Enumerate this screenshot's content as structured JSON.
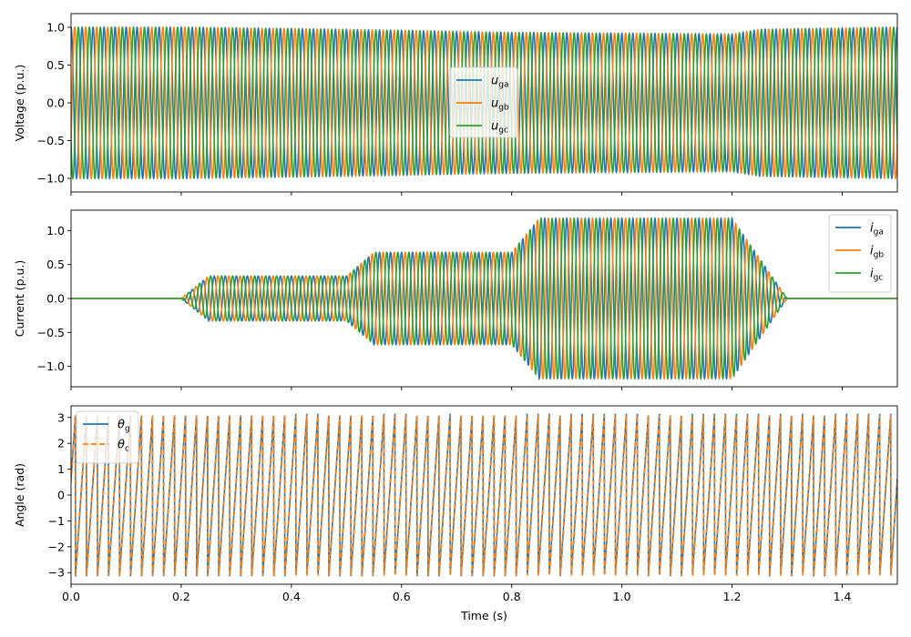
{
  "colors": {
    "blue": "#1f77b4",
    "orange": "#ff7f0e",
    "green": "#2ca02c"
  },
  "chart_data": [
    {
      "type": "line",
      "ylabel": "Voltage (p.u.)",
      "xlabel": "",
      "xlim": [
        0,
        1.5
      ],
      "ylim": [
        -1.18,
        1.18
      ],
      "x_ticks": [
        0.0,
        0.2,
        0.4,
        0.6,
        0.8,
        1.0,
        1.2,
        1.4
      ],
      "y_ticks": [
        -1.0,
        -0.5,
        0.0,
        0.5,
        1.0
      ],
      "y_tick_labels": [
        "−1.0",
        "−0.5",
        "0.0",
        "0.5",
        "1.0"
      ],
      "grid": false,
      "legend_position": "center",
      "frequency_hz": 50,
      "series": [
        {
          "name": "u",
          "sub": "ga",
          "color": "#1f77b4",
          "phase_deg": 0
        },
        {
          "name": "u",
          "sub": "gb",
          "color": "#ff7f0e",
          "phase_deg": -120
        },
        {
          "name": "u",
          "sub": "gc",
          "color": "#2ca02c",
          "phase_deg": 120
        }
      ],
      "amplitude_profile": [
        {
          "t": 0.0,
          "amp": 1.0
        },
        {
          "t": 0.2,
          "amp": 1.0
        },
        {
          "t": 0.5,
          "amp": 0.97
        },
        {
          "t": 0.8,
          "amp": 0.93
        },
        {
          "t": 1.2,
          "amp": 0.91
        },
        {
          "t": 1.25,
          "amp": 0.97
        },
        {
          "t": 1.5,
          "amp": 1.0
        }
      ]
    },
    {
      "type": "line",
      "ylabel": "Current (p.u.)",
      "xlabel": "",
      "xlim": [
        0,
        1.5
      ],
      "ylim": [
        -1.3,
        1.3
      ],
      "x_ticks": [
        0.0,
        0.2,
        0.4,
        0.6,
        0.8,
        1.0,
        1.2,
        1.4
      ],
      "y_ticks": [
        -1.0,
        -0.5,
        0.0,
        0.5,
        1.0
      ],
      "y_tick_labels": [
        "−1.0",
        "−0.5",
        "0.0",
        "0.5",
        "1.0"
      ],
      "grid": false,
      "legend_position": "top-right",
      "frequency_hz": 50,
      "series": [
        {
          "name": "i",
          "sub": "ga",
          "color": "#1f77b4",
          "phase_deg": 0
        },
        {
          "name": "i",
          "sub": "gb",
          "color": "#ff7f0e",
          "phase_deg": -120
        },
        {
          "name": "i",
          "sub": "gc",
          "color": "#2ca02c",
          "phase_deg": 120
        }
      ],
      "amplitude_profile": [
        {
          "t": 0.0,
          "amp": 0.0
        },
        {
          "t": 0.2,
          "amp": 0.0
        },
        {
          "t": 0.25,
          "amp": 0.33
        },
        {
          "t": 0.5,
          "amp": 0.33
        },
        {
          "t": 0.55,
          "amp": 0.68
        },
        {
          "t": 0.8,
          "amp": 0.68
        },
        {
          "t": 0.85,
          "amp": 1.18
        },
        {
          "t": 1.2,
          "amp": 1.18
        },
        {
          "t": 1.3,
          "amp": 0.0
        },
        {
          "t": 1.5,
          "amp": 0.0
        }
      ]
    },
    {
      "type": "line",
      "ylabel": "Angle (rad)",
      "xlabel": "Time (s)",
      "xlim": [
        0,
        1.5
      ],
      "ylim": [
        -3.45,
        3.45
      ],
      "x_ticks": [
        0.0,
        0.2,
        0.4,
        0.6,
        0.8,
        1.0,
        1.2,
        1.4
      ],
      "x_tick_labels": [
        "0.0",
        "0.2",
        "0.4",
        "0.6",
        "0.8",
        "1.0",
        "1.2",
        "1.4"
      ],
      "y_ticks": [
        -3,
        -2,
        -1,
        0,
        1,
        2,
        3
      ],
      "y_tick_labels": [
        "−3",
        "−2",
        "−1",
        "0",
        "1",
        "2",
        "3"
      ],
      "grid": false,
      "legend_position": "top-left",
      "frequency_hz": 50,
      "series": [
        {
          "name": "θ",
          "sub": "g",
          "color": "#1f77b4",
          "dash": "solid",
          "phase_deg": 0
        },
        {
          "name": "θ",
          "sub": "c",
          "color": "#ff7f0e",
          "dash": "dashed",
          "phase_deg": -8
        }
      ]
    }
  ]
}
